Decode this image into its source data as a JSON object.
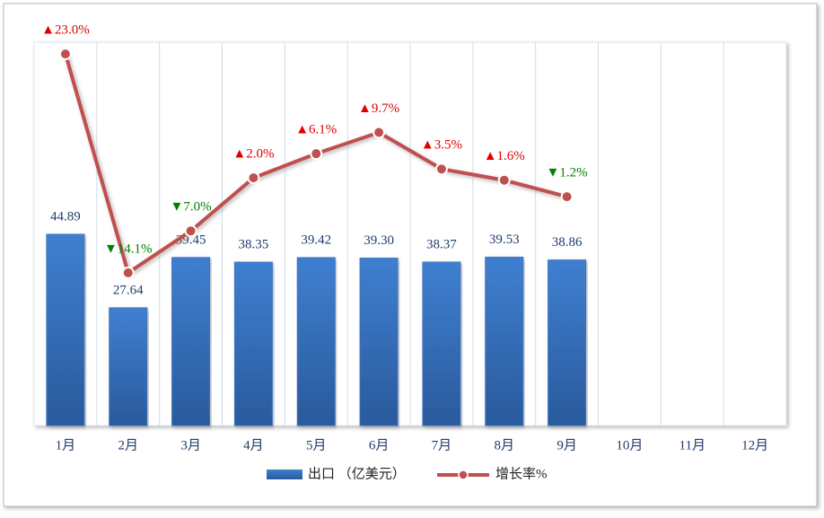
{
  "chart_data": {
    "type": "bar",
    "categories": [
      "1月",
      "2月",
      "3月",
      "4月",
      "5月",
      "6月",
      "7月",
      "8月",
      "9月",
      "10月",
      "11月",
      "12月"
    ],
    "ylim": [
      0,
      90
    ],
    "y2lim": [
      -40,
      25
    ],
    "up_color": "#e00000",
    "down_color": "#008000",
    "series": [
      {
        "name": "出口 （亿美元）",
        "type": "bar",
        "color": "#3a75c4",
        "values": [
          44.89,
          27.64,
          39.45,
          38.35,
          39.42,
          39.3,
          38.37,
          39.53,
          38.86,
          null,
          null,
          null
        ],
        "value_labels": [
          "44.89",
          "27.64",
          "39.45",
          "38.35",
          "39.42",
          "39.30",
          "38.37",
          "39.53",
          "38.86",
          null,
          null,
          null
        ]
      },
      {
        "name": "增长率%",
        "type": "line",
        "axis": "y2",
        "color": "#c0504d",
        "values": [
          23.0,
          -14.1,
          -7.0,
          2.0,
          6.1,
          9.7,
          3.5,
          1.6,
          -1.2,
          null,
          null,
          null
        ],
        "value_labels": [
          "▲23.0%",
          "▼14.1%",
          "▼7.0%",
          "▲2.0%",
          "▲6.1%",
          "▲9.7%",
          "▲3.5%",
          "▲1.6%",
          "▼1.2%",
          null,
          null,
          null
        ]
      }
    ]
  }
}
